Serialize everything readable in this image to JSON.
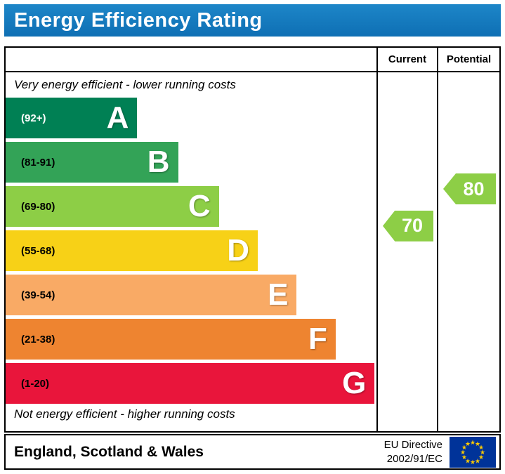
{
  "header": {
    "title": "Energy Efficiency Rating",
    "bar_color": "#1479bd"
  },
  "table": {
    "current_label": "Current",
    "potential_label": "Potential"
  },
  "notes": {
    "top": "Very energy efficient - lower running costs",
    "bottom": "Not energy efficient - higher running costs"
  },
  "chart_data": {
    "type": "bar",
    "title": "Energy Efficiency Rating",
    "bands": [
      {
        "letter": "A",
        "label": "(92+)",
        "min": 92,
        "max": 100,
        "color": "#008054",
        "width_pct": 35.5,
        "label_color": "#ffffff"
      },
      {
        "letter": "B",
        "label": "(81-91)",
        "min": 81,
        "max": 91,
        "color": "#33a357",
        "width_pct": 46.5,
        "label_color": "#000000"
      },
      {
        "letter": "C",
        "label": "(69-80)",
        "min": 69,
        "max": 80,
        "color": "#8dce46",
        "width_pct": 57.5,
        "label_color": "#000000"
      },
      {
        "letter": "D",
        "label": "(55-68)",
        "min": 55,
        "max": 68,
        "color": "#f7d117",
        "width_pct": 68.0,
        "label_color": "#000000"
      },
      {
        "letter": "E",
        "label": "(39-54)",
        "min": 39,
        "max": 54,
        "color": "#f9aa65",
        "width_pct": 78.5,
        "label_color": "#000000"
      },
      {
        "letter": "F",
        "label": "(21-38)",
        "min": 21,
        "max": 38,
        "color": "#ee8430",
        "width_pct": 89.0,
        "label_color": "#000000"
      },
      {
        "letter": "G",
        "label": "(1-20)",
        "min": 1,
        "max": 20,
        "color": "#e9153b",
        "width_pct": 99.5,
        "label_color": "#000000"
      }
    ],
    "current": {
      "value": 70,
      "color": "#8dce46"
    },
    "potential": {
      "value": 80,
      "color": "#8dce46"
    },
    "ylim": [
      1,
      100
    ],
    "legend_position": "none",
    "grid": false
  },
  "footer": {
    "region": "England, Scotland & Wales",
    "directive_line1": "EU Directive",
    "directive_line2": "2002/91/EC",
    "flag": {
      "bg": "#003399",
      "star_color": "#ffcc00"
    }
  }
}
